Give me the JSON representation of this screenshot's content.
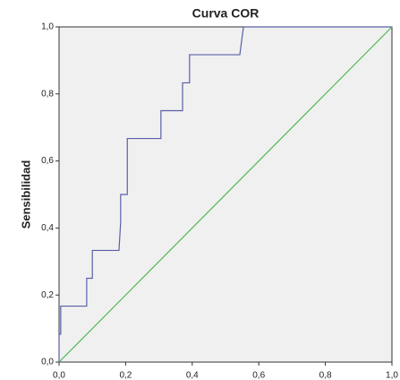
{
  "chart_data": {
    "type": "line",
    "title": "Curva COR",
    "ylabel": "Sensibilidad",
    "series": [
      {
        "color": "#5a5fa8",
        "x": [
          0,
          0,
          0.005,
          0.005,
          0.083,
          0.083,
          0.1,
          0.1,
          0.18,
          0.185,
          0.185,
          0.205,
          0.205,
          0.306,
          0.306,
          0.371,
          0.371,
          0.392,
          0.392,
          0.543,
          0.554,
          1
        ],
        "values": [
          0,
          0.083,
          0.083,
          0.167,
          0.167,
          0.25,
          0.25,
          0.333,
          0.333,
          0.417,
          0.5,
          0.5,
          0.667,
          0.667,
          0.75,
          0.75,
          0.833,
          0.833,
          0.917,
          0.917,
          1,
          1
        ]
      },
      {
        "color": "#4fb84f",
        "x": [
          0,
          1
        ],
        "values": [
          0,
          1
        ]
      }
    ],
    "xlim": [
      0,
      1
    ],
    "ylim": [
      0,
      1
    ],
    "xticks": [
      {
        "value": 0,
        "label": "0,0"
      },
      {
        "value": 0.2,
        "label": "0,2"
      },
      {
        "value": 0.4,
        "label": "0,4"
      },
      {
        "value": 0.6,
        "label": "0,6"
      },
      {
        "value": 0.8,
        "label": "0,8"
      },
      {
        "value": 1,
        "label": "1,0"
      }
    ],
    "yticks": [
      {
        "value": 0,
        "label": "0,0"
      },
      {
        "value": 0.2,
        "label": "0,2"
      },
      {
        "value": 0.4,
        "label": "0,4"
      },
      {
        "value": 0.6,
        "label": "0,6"
      },
      {
        "value": 0.8,
        "label": "0,8"
      },
      {
        "value": 1,
        "label": "1,0"
      }
    ],
    "background": "#f0f0f0"
  }
}
